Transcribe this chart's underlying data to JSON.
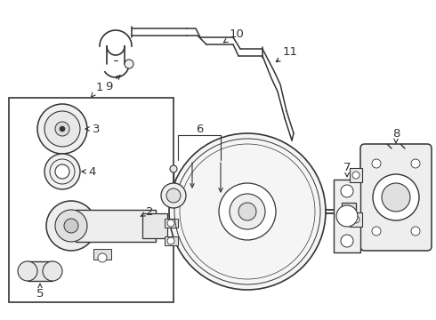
{
  "bg_color": "#ffffff",
  "line_color": "#333333",
  "lw": 1.0,
  "fig_w": 4.9,
  "fig_h": 3.6,
  "dpi": 100
}
